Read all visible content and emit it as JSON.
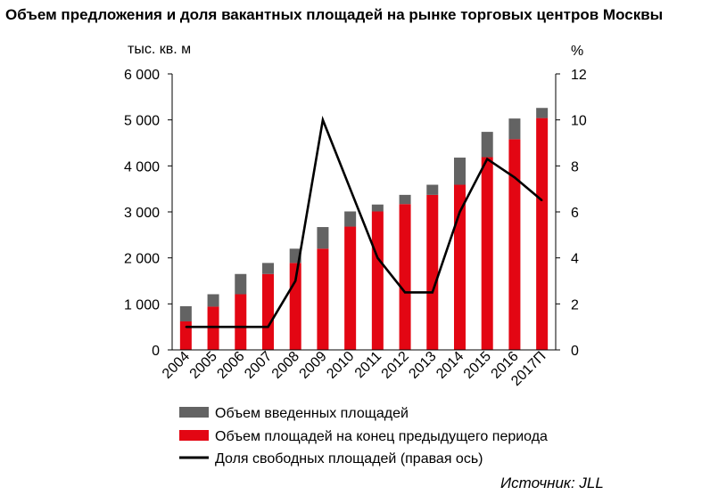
{
  "chart_data": {
    "type": "bar",
    "title": "Объем предложения и доля вакантных площадей на рынке торговых центров Москвы",
    "y_left_unit": "тыс. кв. м",
    "y_right_unit": "%",
    "categories": [
      "2004",
      "2005",
      "2006",
      "2007",
      "2008",
      "2009",
      "2010",
      "2011",
      "2012",
      "2013",
      "2014",
      "2015",
      "2016",
      "2017П"
    ],
    "y_left_ticks": [
      "0",
      "1 000",
      "2 000",
      "3 000",
      "4 000",
      "5 000",
      "6 000"
    ],
    "y_right_ticks": [
      "0",
      "2",
      "4",
      "6",
      "8",
      "10",
      "12"
    ],
    "ylim_left": [
      0,
      6000
    ],
    "ylim_right": [
      0,
      12
    ],
    "stacked": true,
    "series": [
      {
        "name": "Объем площадей на конец предыдущего периода",
        "color": "#e30613",
        "axis": "left",
        "values": [
          620,
          940,
          1210,
          1650,
          1890,
          2200,
          2680,
          3010,
          3170,
          3370,
          3590,
          4190,
          4580,
          5040
        ]
      },
      {
        "name": "Объем введенных площадей",
        "color": "#636363",
        "axis": "left",
        "values": [
          330,
          270,
          440,
          240,
          310,
          470,
          330,
          150,
          200,
          220,
          590,
          550,
          450,
          220
        ]
      },
      {
        "name": "Доля свободных площадей (правая ось)",
        "type": "line",
        "color": "#000000",
        "axis": "right",
        "values": [
          1.0,
          1.0,
          1.0,
          1.0,
          3.0,
          10.0,
          7.0,
          4.0,
          2.5,
          2.5,
          6.0,
          8.3,
          7.5,
          6.5
        ]
      }
    ],
    "legend_order": [
      "Объем введенных площадей",
      "Объем площадей на конец предыдущего периода",
      "Доля свободных площадей (правая ось)"
    ],
    "legend_position": "bottom",
    "grid": false
  },
  "source": "Источник: JLL"
}
